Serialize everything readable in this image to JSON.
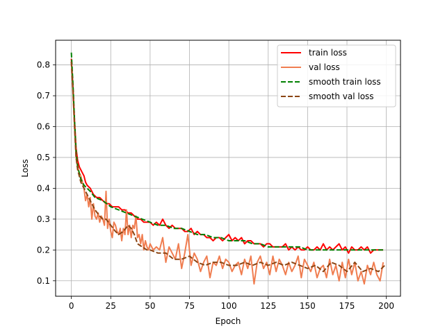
{
  "chart_data": {
    "type": "line",
    "xlabel": "Epoch",
    "ylabel": "Loss",
    "xlim": [
      -10,
      209
    ],
    "ylim": [
      0.05,
      0.88
    ],
    "xticks": [
      0,
      25,
      50,
      75,
      100,
      125,
      150,
      175,
      200
    ],
    "yticks": [
      0.1,
      0.2,
      0.3,
      0.4,
      0.5,
      0.6,
      0.7,
      0.8
    ],
    "grid": true,
    "legend_position": "top-right",
    "series": [
      {
        "name": "train loss",
        "color": "#ff0000",
        "style": "solid",
        "x": [
          0,
          1,
          2,
          3,
          4,
          5,
          6,
          7,
          8,
          9,
          10,
          12,
          14,
          16,
          18,
          20,
          22,
          24,
          26,
          28,
          30,
          32,
          34,
          36,
          38,
          40,
          42,
          44,
          46,
          48,
          50,
          52,
          54,
          56,
          58,
          60,
          62,
          64,
          66,
          68,
          70,
          72,
          74,
          76,
          78,
          80,
          82,
          84,
          86,
          88,
          90,
          92,
          94,
          96,
          98,
          100,
          102,
          104,
          106,
          108,
          110,
          112,
          114,
          116,
          118,
          120,
          122,
          124,
          126,
          128,
          130,
          132,
          134,
          136,
          138,
          140,
          142,
          144,
          146,
          148,
          150,
          152,
          154,
          156,
          158,
          160,
          162,
          164,
          166,
          168,
          170,
          172,
          174,
          176,
          178,
          180,
          182,
          184,
          186,
          188,
          190,
          192,
          194,
          196,
          198
        ],
        "values": [
          0.82,
          0.73,
          0.62,
          0.53,
          0.49,
          0.47,
          0.46,
          0.45,
          0.44,
          0.42,
          0.41,
          0.4,
          0.38,
          0.37,
          0.37,
          0.36,
          0.35,
          0.35,
          0.34,
          0.34,
          0.34,
          0.33,
          0.33,
          0.32,
          0.32,
          0.31,
          0.3,
          0.3,
          0.29,
          0.29,
          0.29,
          0.28,
          0.29,
          0.28,
          0.3,
          0.28,
          0.27,
          0.28,
          0.27,
          0.27,
          0.27,
          0.26,
          0.26,
          0.27,
          0.25,
          0.26,
          0.25,
          0.25,
          0.24,
          0.24,
          0.23,
          0.24,
          0.24,
          0.23,
          0.24,
          0.25,
          0.23,
          0.24,
          0.23,
          0.24,
          0.22,
          0.23,
          0.23,
          0.22,
          0.22,
          0.22,
          0.21,
          0.22,
          0.22,
          0.21,
          0.21,
          0.21,
          0.21,
          0.22,
          0.2,
          0.21,
          0.2,
          0.21,
          0.2,
          0.2,
          0.21,
          0.2,
          0.2,
          0.21,
          0.2,
          0.22,
          0.2,
          0.21,
          0.2,
          0.21,
          0.22,
          0.2,
          0.21,
          0.19,
          0.21,
          0.2,
          0.2,
          0.21,
          0.2,
          0.21,
          0.19,
          0.2,
          0.2,
          0.2,
          0.2
        ]
      },
      {
        "name": "val loss",
        "color": "#f07d50",
        "style": "solid",
        "x": [
          0,
          1,
          2,
          3,
          4,
          5,
          6,
          7,
          8,
          9,
          10,
          11,
          12,
          13,
          14,
          15,
          16,
          17,
          18,
          19,
          20,
          21,
          22,
          23,
          24,
          25,
          26,
          27,
          28,
          29,
          30,
          31,
          32,
          33,
          34,
          35,
          36,
          37,
          38,
          39,
          40,
          41,
          42,
          43,
          44,
          45,
          46,
          47,
          48,
          49,
          50,
          52,
          54,
          56,
          58,
          60,
          62,
          64,
          66,
          68,
          70,
          72,
          74,
          76,
          78,
          80,
          82,
          84,
          86,
          88,
          90,
          92,
          94,
          96,
          98,
          100,
          102,
          104,
          106,
          108,
          110,
          112,
          114,
          116,
          118,
          120,
          122,
          124,
          126,
          128,
          130,
          132,
          134,
          136,
          138,
          140,
          142,
          144,
          146,
          148,
          150,
          152,
          154,
          156,
          158,
          160,
          162,
          164,
          166,
          168,
          170,
          172,
          174,
          176,
          178,
          180,
          182,
          184,
          186,
          188,
          190,
          192,
          194,
          196,
          198
        ],
        "values": [
          0.81,
          0.71,
          0.6,
          0.5,
          0.47,
          0.45,
          0.44,
          0.42,
          0.4,
          0.36,
          0.38,
          0.34,
          0.37,
          0.3,
          0.35,
          0.31,
          0.3,
          0.32,
          0.29,
          0.31,
          0.3,
          0.28,
          0.39,
          0.27,
          0.3,
          0.26,
          0.24,
          0.29,
          0.28,
          0.26,
          0.25,
          0.27,
          0.23,
          0.27,
          0.25,
          0.33,
          0.25,
          0.28,
          0.24,
          0.28,
          0.27,
          0.31,
          0.24,
          0.25,
          0.22,
          0.25,
          0.2,
          0.23,
          0.21,
          0.2,
          0.22,
          0.2,
          0.21,
          0.2,
          0.24,
          0.16,
          0.21,
          0.19,
          0.17,
          0.22,
          0.14,
          0.19,
          0.25,
          0.15,
          0.19,
          0.17,
          0.13,
          0.16,
          0.18,
          0.11,
          0.16,
          0.15,
          0.18,
          0.14,
          0.17,
          0.16,
          0.13,
          0.15,
          0.16,
          0.12,
          0.17,
          0.14,
          0.18,
          0.09,
          0.16,
          0.18,
          0.14,
          0.16,
          0.12,
          0.18,
          0.13,
          0.17,
          0.15,
          0.12,
          0.16,
          0.13,
          0.15,
          0.18,
          0.11,
          0.17,
          0.15,
          0.13,
          0.16,
          0.11,
          0.14,
          0.15,
          0.11,
          0.17,
          0.12,
          0.15,
          0.1,
          0.16,
          0.11,
          0.17,
          0.12,
          0.16,
          0.1,
          0.13,
          0.09,
          0.15,
          0.12,
          0.16,
          0.12,
          0.1,
          0.16
        ]
      },
      {
        "name": "smooth train loss",
        "color": "#008000",
        "style": "dashed",
        "x": [
          0,
          1,
          2,
          3,
          4,
          5,
          6,
          7,
          8,
          10,
          12,
          15,
          20,
          25,
          30,
          35,
          40,
          45,
          50,
          55,
          60,
          65,
          70,
          75,
          80,
          85,
          90,
          95,
          100,
          105,
          110,
          115,
          120,
          125,
          130,
          135,
          140,
          145,
          150,
          155,
          160,
          165,
          170,
          175,
          180,
          185,
          190,
          195,
          199
        ],
        "values": [
          0.84,
          0.74,
          0.62,
          0.52,
          0.47,
          0.45,
          0.43,
          0.42,
          0.41,
          0.4,
          0.39,
          0.37,
          0.36,
          0.34,
          0.33,
          0.32,
          0.31,
          0.3,
          0.29,
          0.28,
          0.28,
          0.27,
          0.27,
          0.26,
          0.25,
          0.25,
          0.24,
          0.24,
          0.23,
          0.23,
          0.23,
          0.22,
          0.22,
          0.21,
          0.21,
          0.21,
          0.21,
          0.21,
          0.2,
          0.2,
          0.2,
          0.2,
          0.2,
          0.2,
          0.2,
          0.2,
          0.2,
          0.2,
          0.2
        ]
      },
      {
        "name": "smooth val loss",
        "color": "#8b4513",
        "style": "dashed",
        "x": [
          0,
          1,
          2,
          3,
          4,
          5,
          6,
          7,
          8,
          10,
          12,
          15,
          18,
          20,
          22,
          25,
          28,
          30,
          33,
          36,
          38,
          40,
          42,
          45,
          48,
          50,
          55,
          60,
          65,
          70,
          75,
          80,
          85,
          90,
          95,
          100,
          105,
          110,
          115,
          120,
          125,
          130,
          135,
          140,
          145,
          150,
          155,
          160,
          165,
          170,
          175,
          180,
          185,
          190,
          195,
          199
        ],
        "values": [
          0.81,
          0.72,
          0.6,
          0.5,
          0.46,
          0.44,
          0.42,
          0.41,
          0.4,
          0.38,
          0.36,
          0.33,
          0.31,
          0.3,
          0.3,
          0.28,
          0.26,
          0.25,
          0.26,
          0.28,
          0.27,
          0.25,
          0.22,
          0.21,
          0.2,
          0.2,
          0.19,
          0.19,
          0.17,
          0.17,
          0.18,
          0.16,
          0.15,
          0.16,
          0.16,
          0.15,
          0.15,
          0.16,
          0.15,
          0.16,
          0.15,
          0.16,
          0.15,
          0.16,
          0.15,
          0.14,
          0.15,
          0.13,
          0.16,
          0.15,
          0.13,
          0.16,
          0.13,
          0.14,
          0.13,
          0.15
        ]
      }
    ]
  }
}
